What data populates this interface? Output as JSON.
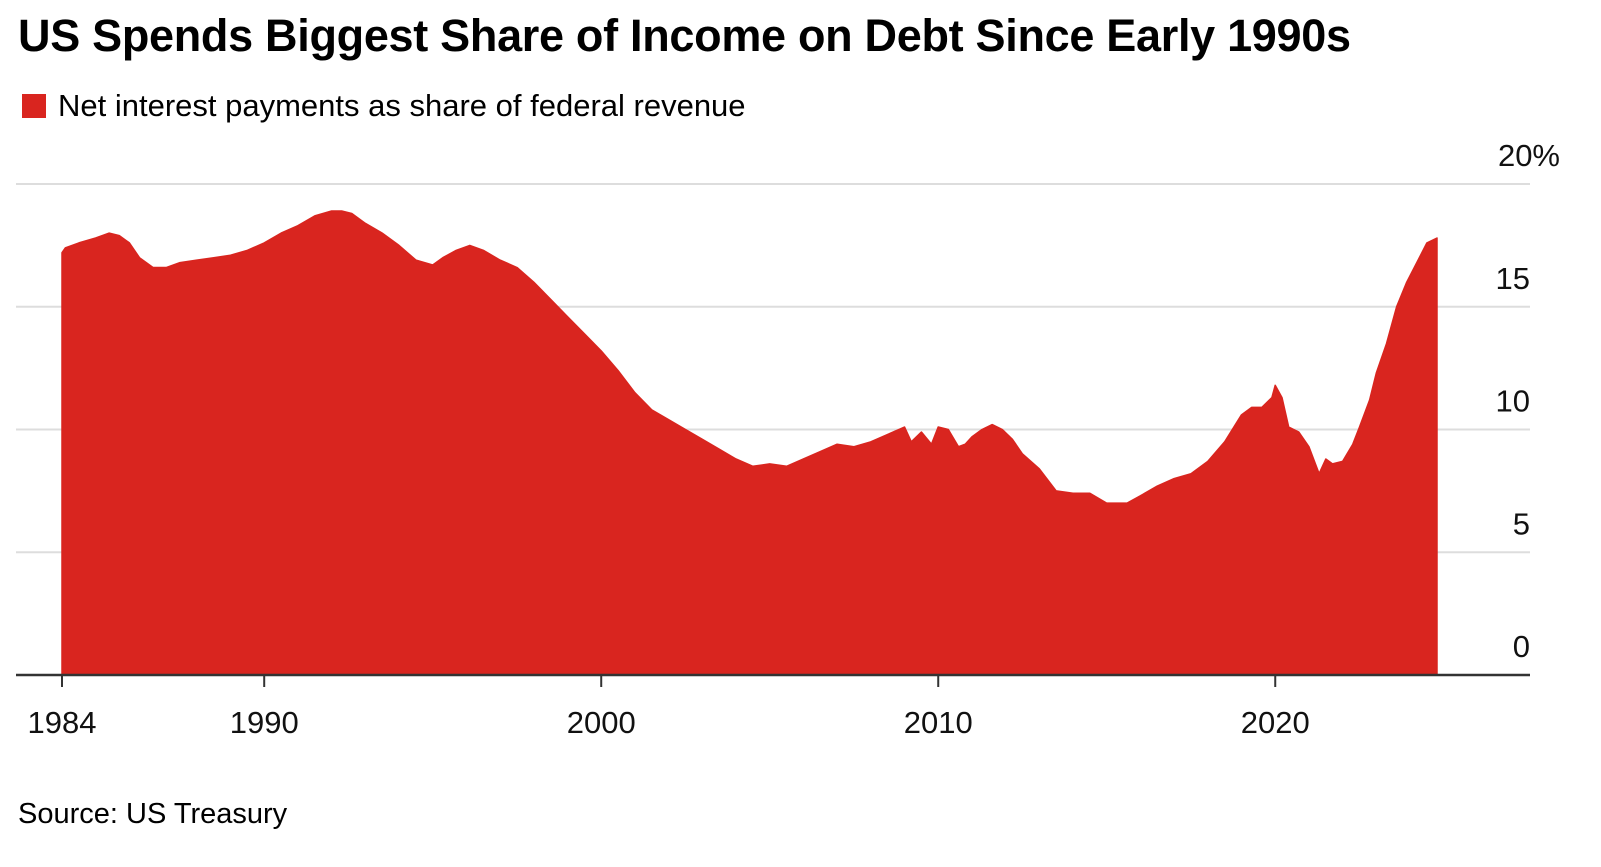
{
  "title": "US Spends Biggest Share of Income on Debt Since Early 1990s",
  "source": "Source: US Treasury",
  "colors": {
    "series": "#D9251F",
    "grid": "#dddddd",
    "axis": "#333333"
  },
  "chart_data": {
    "type": "area",
    "title": "US Spends Biggest Share of Income on Debt Since Early 1990s",
    "xlabel": "",
    "ylabel": "",
    "xlim": [
      1984,
      2027.5
    ],
    "ylim": [
      0,
      20
    ],
    "grid": true,
    "legend_position": "top-left",
    "y_ticks": [
      {
        "value": 20,
        "label": "20%"
      },
      {
        "value": 15,
        "label": "15"
      },
      {
        "value": 10,
        "label": "10"
      },
      {
        "value": 5,
        "label": "5"
      },
      {
        "value": 0,
        "label": "0"
      }
    ],
    "x_ticks": [
      {
        "value": 1984,
        "label": "1984"
      },
      {
        "value": 1990,
        "label": "1990"
      },
      {
        "value": 2000,
        "label": "2000"
      },
      {
        "value": 2010,
        "label": "2010"
      },
      {
        "value": 2020,
        "label": "2020"
      }
    ],
    "series": [
      {
        "name": "Net interest payments as share of federal revenue",
        "x": [
          1984.0,
          1984.1,
          1984.5,
          1985.0,
          1985.4,
          1985.7,
          1986.0,
          1986.3,
          1986.7,
          1987.1,
          1987.5,
          1988.0,
          1988.5,
          1989.0,
          1989.5,
          1990.0,
          1990.5,
          1991.0,
          1991.5,
          1992.0,
          1992.3,
          1992.6,
          1993.0,
          1993.5,
          1994.0,
          1994.5,
          1995.0,
          1995.3,
          1995.7,
          1996.1,
          1996.5,
          1997.0,
          1997.5,
          1998.0,
          1998.5,
          1999.0,
          1999.5,
          2000.0,
          2000.5,
          2001.0,
          2001.5,
          2002.0,
          2002.5,
          2003.0,
          2003.5,
          2004.0,
          2004.5,
          2005.0,
          2005.5,
          2006.0,
          2006.5,
          2007.0,
          2007.5,
          2008.0,
          2008.5,
          2009.0,
          2009.2,
          2009.5,
          2009.8,
          2010.0,
          2010.3,
          2010.6,
          2010.8,
          2011.0,
          2011.3,
          2011.6,
          2011.9,
          2012.2,
          2012.5,
          2013.0,
          2013.5,
          2014.0,
          2014.5,
          2015.0,
          2015.3,
          2015.6,
          2016.0,
          2016.5,
          2017.0,
          2017.5,
          2018.0,
          2018.5,
          2019.0,
          2019.3,
          2019.6,
          2019.9,
          2020.0,
          2020.2,
          2020.4,
          2020.7,
          2021.0,
          2021.3,
          2021.5,
          2021.7,
          2022.0,
          2022.3,
          2022.5,
          2022.8,
          2023.0,
          2023.3,
          2023.6,
          2023.9,
          2024.2,
          2024.5,
          2024.8
        ],
        "values": [
          17.2,
          17.4,
          17.6,
          17.8,
          18.0,
          17.9,
          17.6,
          17.0,
          16.6,
          16.6,
          16.8,
          16.9,
          17.0,
          17.1,
          17.3,
          17.6,
          18.0,
          18.3,
          18.7,
          18.9,
          18.9,
          18.8,
          18.4,
          18.0,
          17.5,
          16.9,
          16.7,
          17.0,
          17.3,
          17.5,
          17.3,
          16.9,
          16.6,
          16.0,
          15.3,
          14.6,
          13.9,
          13.2,
          12.4,
          11.5,
          10.8,
          10.4,
          10.0,
          9.6,
          9.2,
          8.8,
          8.5,
          8.6,
          8.5,
          8.8,
          9.1,
          9.4,
          9.3,
          9.5,
          9.8,
          10.1,
          9.5,
          9.9,
          9.4,
          10.1,
          10.0,
          9.3,
          9.4,
          9.7,
          10.0,
          10.2,
          10.0,
          9.6,
          9.0,
          8.4,
          7.5,
          7.4,
          7.4,
          7.0,
          7.0,
          7.0,
          7.3,
          7.7,
          8.0,
          8.2,
          8.7,
          9.5,
          10.6,
          10.9,
          10.9,
          11.3,
          11.8,
          11.3,
          10.1,
          9.9,
          9.3,
          8.2,
          8.8,
          8.6,
          8.7,
          9.4,
          10.1,
          11.2,
          12.3,
          13.5,
          15.0,
          16.0,
          16.8,
          17.6,
          17.8
        ]
      }
    ]
  }
}
